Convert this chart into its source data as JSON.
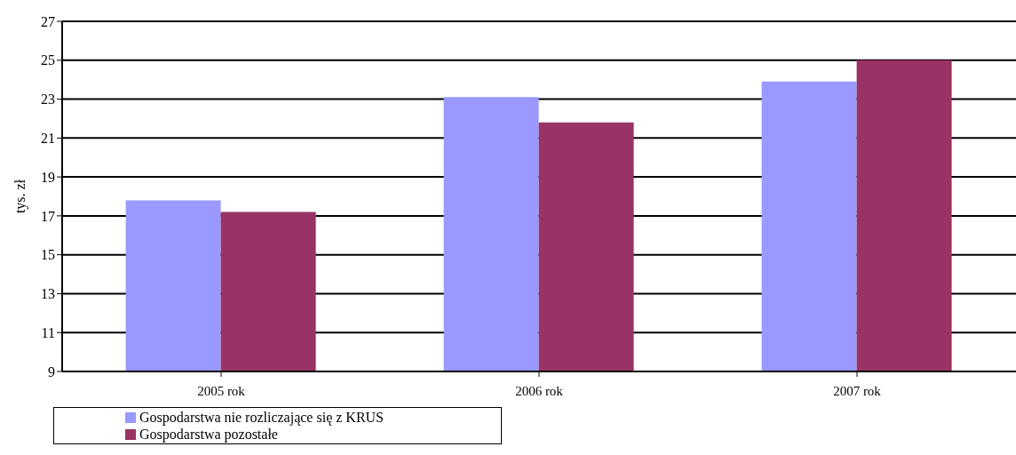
{
  "chart_data": {
    "type": "bar",
    "ylabel": "tys. zł",
    "categories": [
      "2005 rok",
      "2006 rok",
      "2007 rok"
    ],
    "series": [
      {
        "name": "Gospodarstwa nie rozliczające się z KRUS",
        "color": "#9999ff",
        "values": [
          17.8,
          23.1,
          23.9
        ]
      },
      {
        "name": "Gospodarstwa pozostałe",
        "color": "#993366",
        "values": [
          17.2,
          21.8,
          25.0
        ]
      }
    ],
    "ylim": [
      9,
      27
    ],
    "yticks": [
      9,
      11,
      13,
      15,
      17,
      19,
      21,
      23,
      25,
      27
    ],
    "grid": "y",
    "legend": "bottom left"
  }
}
